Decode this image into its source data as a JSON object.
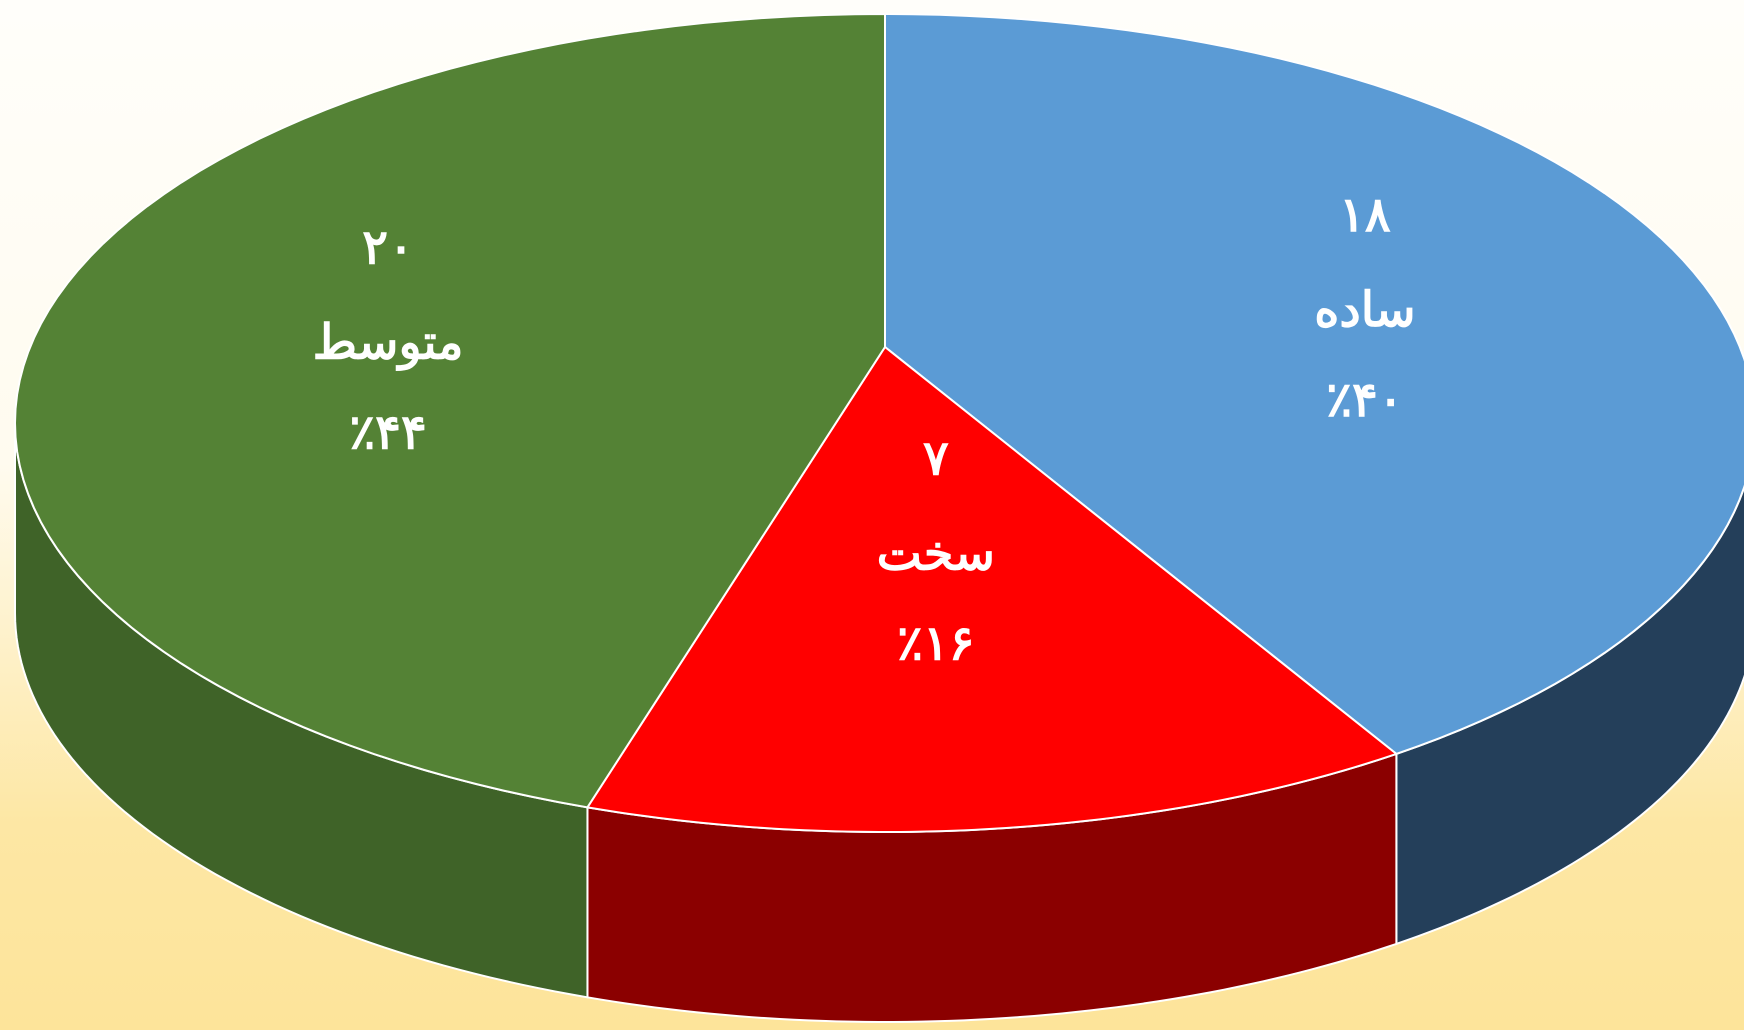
{
  "chart_data": {
    "type": "pie3d",
    "categories": [
      "ساده",
      "سخت",
      "متوسط"
    ],
    "values": [
      18,
      7,
      20
    ],
    "value_labels": [
      "۱۸",
      "۷",
      "۲۰"
    ],
    "percents": [
      40,
      16,
      44
    ],
    "percent_labels": [
      "٪۴۰",
      "٪۱۶",
      "٪۴۴"
    ],
    "colors": [
      "#5b9bd5",
      "#ff0000",
      "#548235"
    ],
    "side_colors": [
      "#243f5a",
      "#8b0000",
      "#3f6328"
    ]
  }
}
